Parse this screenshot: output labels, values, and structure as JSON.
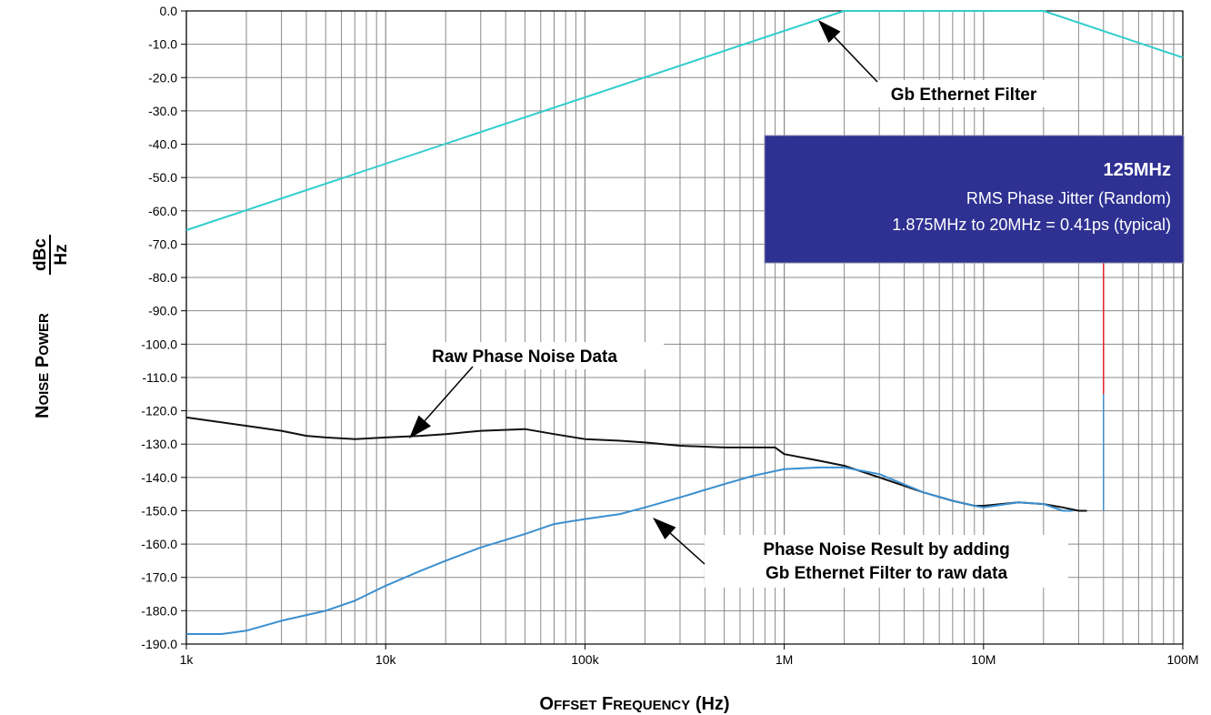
{
  "chart_data": {
    "type": "line",
    "title": "",
    "xlabel": {
      "lead_x": "O",
      "small_x": "FFSET",
      "lead_f": "F",
      "small_f": "REQUENCY",
      "unit": "(Hz)"
    },
    "ylabel": {
      "lead_n": "N",
      "small_n": "OISE",
      "lead_p": "P",
      "small_p": "OWER",
      "unit_num": "dBc",
      "unit_den": "Hz"
    },
    "x_scale": "log",
    "xlim": [
      1000,
      100000000
    ],
    "ylim": [
      -190,
      0
    ],
    "grid": true,
    "x_ticks": [
      {
        "value": 1000,
        "label": "1k"
      },
      {
        "value": 10000,
        "label": "10k"
      },
      {
        "value": 100000,
        "label": "100k"
      },
      {
        "value": 1000000,
        "label": "1M"
      },
      {
        "value": 10000000,
        "label": "10M"
      },
      {
        "value": 100000000,
        "label": "100M"
      }
    ],
    "y_ticks": [
      {
        "value": 0,
        "label": "0.0"
      },
      {
        "value": -10,
        "label": "-10.0"
      },
      {
        "value": -20,
        "label": "-20.0"
      },
      {
        "value": -30,
        "label": "-30.0"
      },
      {
        "value": -40,
        "label": "-40.0"
      },
      {
        "value": -50,
        "label": "-50.0"
      },
      {
        "value": -60,
        "label": "-60.0"
      },
      {
        "value": -70,
        "label": "-70.0"
      },
      {
        "value": -80,
        "label": "-80.0"
      },
      {
        "value": -90,
        "label": "-90.0"
      },
      {
        "value": -100,
        "label": "-100.0"
      },
      {
        "value": -110,
        "label": "-110.0"
      },
      {
        "value": -120,
        "label": "-120.0"
      },
      {
        "value": -130,
        "label": "-130.0"
      },
      {
        "value": -140,
        "label": "-140.0"
      },
      {
        "value": -150,
        "label": "-150.0"
      },
      {
        "value": -160,
        "label": "-160.0"
      },
      {
        "value": -170,
        "label": "-170.0"
      },
      {
        "value": -180,
        "label": "-180.0"
      },
      {
        "value": -190,
        "label": "-190.0"
      }
    ],
    "series": [
      {
        "key": "filter",
        "color": "#33cccc",
        "x": [
          1000,
          2000000,
          20000000,
          100000000
        ],
        "y": [
          -65.8,
          0,
          0,
          -14
        ]
      },
      {
        "key": "raw",
        "color": "#111111",
        "x": [
          1000,
          2000,
          3000,
          4000,
          5000,
          7000,
          10000,
          15000,
          20000,
          30000,
          50000,
          70000,
          100000,
          150000,
          200000,
          300000,
          500000,
          700000,
          900000,
          1000000,
          1500000,
          2000000,
          3000000,
          5000000,
          7000000,
          9000000,
          10000000,
          15000000,
          20000000,
          25000000,
          30000000,
          33000000
        ],
        "y": [
          -122,
          -124.5,
          -126,
          -127.5,
          -128,
          -128.5,
          -128,
          -127.5,
          -127,
          -126,
          -125.5,
          -127,
          -128.5,
          -129,
          -129.5,
          -130.5,
          -131,
          -131,
          -131,
          -133,
          -135,
          -136.5,
          -140,
          -144.5,
          -147,
          -148.5,
          -148.5,
          -147.5,
          -148,
          -149,
          -150,
          -150
        ]
      },
      {
        "key": "result",
        "color": "#3a8fcf",
        "x": [
          1000,
          1500,
          2000,
          3000,
          5000,
          7000,
          10000,
          15000,
          20000,
          30000,
          50000,
          70000,
          100000,
          150000,
          200000,
          300000,
          500000,
          700000,
          1000000,
          1500000,
          2000000,
          3000000,
          5000000,
          7000000,
          9000000,
          10000000,
          15000000,
          20000000,
          25000000,
          28000000
        ],
        "y": [
          -187,
          -187,
          -186,
          -183,
          -180,
          -177,
          -172.5,
          -168,
          -165,
          -161,
          -157,
          -154,
          -152.5,
          -151,
          -149,
          -146,
          -142,
          -139.5,
          -137.5,
          -137,
          -137,
          -139,
          -144.5,
          -147,
          -148.5,
          -149,
          -147.5,
          -148,
          -150,
          -150
        ]
      }
    ],
    "annotations": {
      "filter_label": "Gb Ethernet Filter",
      "raw_label": "Raw Phase Noise Data",
      "result_label_line1": "Phase Noise Result by adding",
      "result_label_line2": "Gb Ethernet Filter to raw data"
    },
    "info_box": {
      "title": "125MHz",
      "line1": "RMS Phase Jitter (Random)",
      "line2": "1.875MHz to 20MHz = 0.41ps (typical)",
      "background": "#2e3192"
    },
    "marker_line": {
      "x": 40000000,
      "y_top": -75,
      "y_split": -115,
      "y_bottom": -150,
      "color_top": "#e8202a",
      "color_bottom": "#3a8fcf"
    }
  }
}
